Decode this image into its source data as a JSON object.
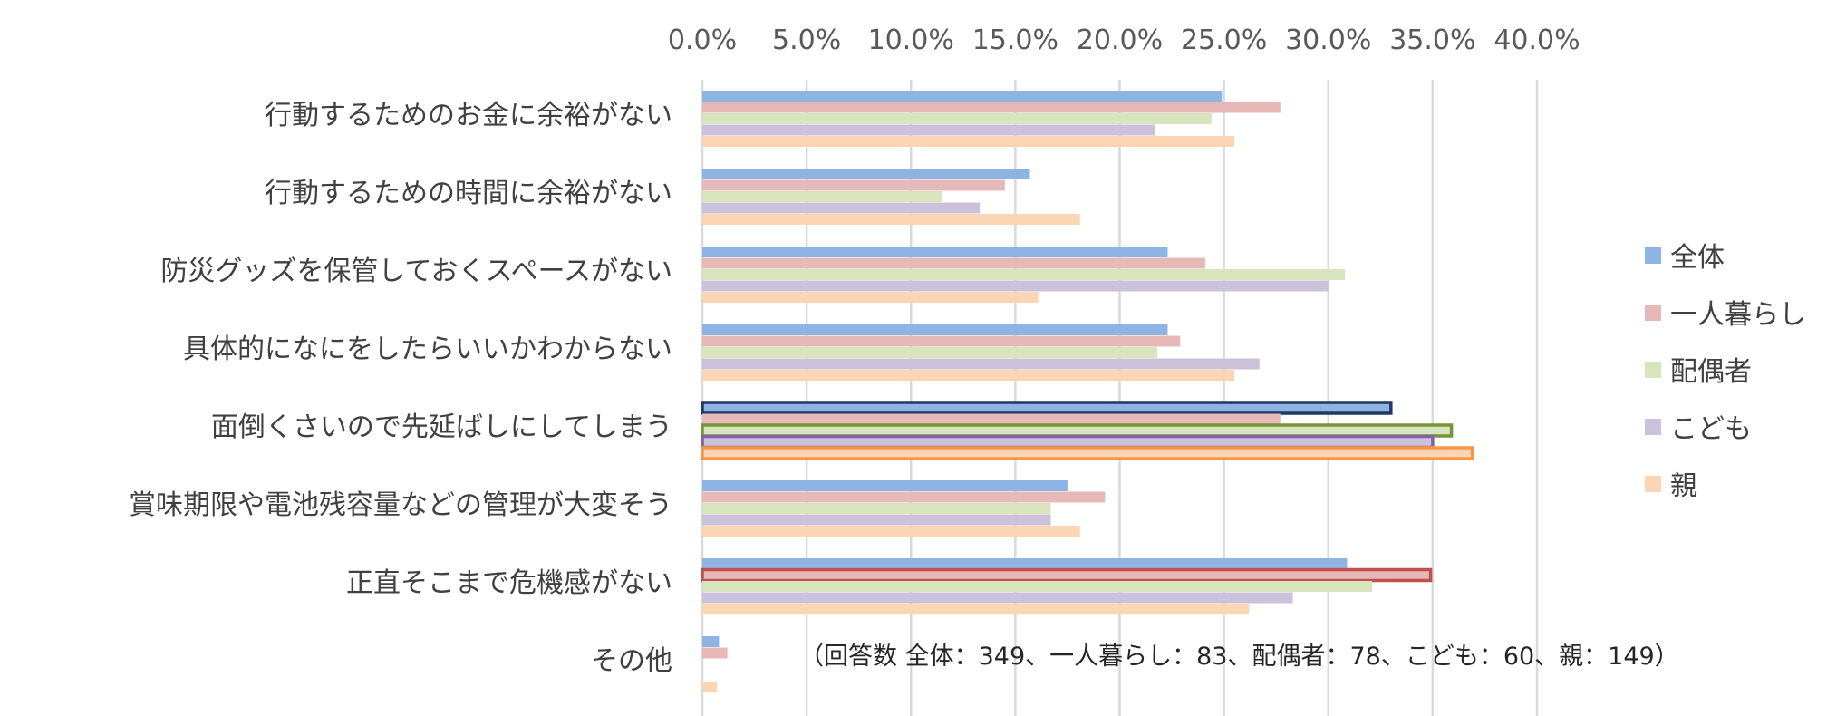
{
  "chart_data": {
    "type": "bar",
    "orientation": "horizontal",
    "categories": [
      "行動するためのお金に余裕がない",
      "行動するための時間に余裕がない",
      "防災グッズを保管しておくスペースがない",
      "具体的になにをしたらいいかわからない",
      "面倒くさいので先延ばしにしてしまう",
      "賞味期限や電池残容量などの管理が大変そう",
      "正直そこまで危機感がない",
      "その他"
    ],
    "x_ticks": [
      "0.0%",
      "5.0%",
      "10.0%",
      "15.0%",
      "20.0%",
      "25.0%",
      "30.0%",
      "35.0%",
      "40.0%"
    ],
    "xlim": [
      0,
      40
    ],
    "series": [
      {
        "name": "全体",
        "color": "#8eb4e3",
        "values": [
          24.9,
          15.7,
          22.3,
          22.3,
          33.0,
          17.5,
          30.9,
          0.8
        ]
      },
      {
        "name": "一人暮らし",
        "color": "#e6b9b8",
        "values": [
          27.7,
          14.5,
          24.1,
          22.9,
          27.7,
          19.3,
          34.9,
          1.2
        ]
      },
      {
        "name": "配偶者",
        "color": "#d7e4bd",
        "values": [
          24.4,
          11.5,
          30.8,
          21.8,
          35.9,
          16.7,
          32.1,
          0.0
        ]
      },
      {
        "name": "こども",
        "color": "#ccc1da",
        "values": [
          21.7,
          13.3,
          30.0,
          26.7,
          35.0,
          16.7,
          28.3,
          0.0
        ]
      },
      {
        "name": "親",
        "color": "#fcd5b5",
        "values": [
          25.5,
          18.1,
          16.1,
          25.5,
          36.9,
          18.1,
          26.2,
          0.7
        ]
      }
    ],
    "highlights": [
      {
        "category": 4,
        "series": 0,
        "outline": "#1f3864"
      },
      {
        "category": 4,
        "series": 2,
        "outline": "#77933c"
      },
      {
        "category": 4,
        "series": 3,
        "outline": "#8064a2"
      },
      {
        "category": 4,
        "series": 4,
        "outline": "#f79646"
      },
      {
        "category": 6,
        "series": 1,
        "outline": "#c0504d"
      }
    ],
    "legend_position": "right",
    "grid": true,
    "annotation": "（回答数 全体：349、一人暮らし：83、配偶者：78、こども：60、親：149）"
  }
}
